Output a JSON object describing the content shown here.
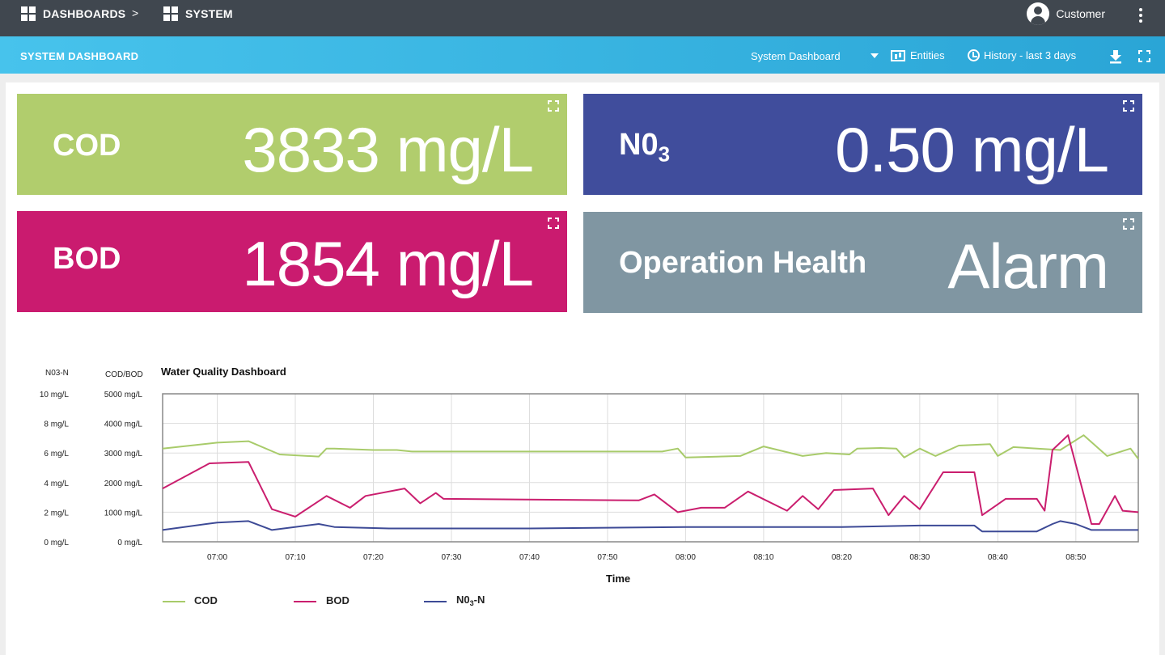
{
  "topbar": {
    "breadcrumb": [
      {
        "label": "DASHBOARDS",
        "icon": "dashboard-grid-icon"
      },
      {
        "label": "SYSTEM",
        "icon": "dashboard-grid-icon"
      }
    ],
    "separator": ">",
    "user_label": "Customer"
  },
  "subbar": {
    "title": "SYSTEM DASHBOARD",
    "dashboard_select": "System Dashboard",
    "entities_label": "Entities",
    "history_label": "History - last 3 days"
  },
  "cards": {
    "cod": {
      "label": "COD",
      "value": "3833 mg/L",
      "color": "#b1cd6d"
    },
    "no3": {
      "label_main": "N0",
      "label_sub": "3",
      "value": "0.50 mg/L",
      "color": "#404d9c"
    },
    "bod": {
      "label": "BOD",
      "value": "1854 mg/L",
      "color": "#ca1b6f"
    },
    "health": {
      "label": "Operation Health",
      "value": "Alarm",
      "color": "#8096a2"
    }
  },
  "chart_data": {
    "type": "line",
    "title": "Water Quality Dashboard",
    "xlabel": "Time",
    "left_axis_label": "N03-N",
    "right_axis_label": "COD/BOD",
    "left_ticks": [
      "10 mg/L",
      "8 mg/L",
      "6 mg/L",
      "4 mg/L",
      "2 mg/L",
      "0 mg/L"
    ],
    "right_ticks": [
      "5000 mg/L",
      "4000 mg/L",
      "3000 mg/L",
      "2000 mg/L",
      "1000 mg/L",
      "0 mg/L"
    ],
    "x_ticks": [
      "07:00",
      "07:10",
      "07:20",
      "07:30",
      "07:40",
      "07:50",
      "08:00",
      "08:10",
      "08:20",
      "08:30",
      "08:40",
      "08:50"
    ],
    "x_range": [
      "06:53",
      "08:58"
    ],
    "cod_bod_range": [
      0,
      5000
    ],
    "no3_range": [
      0,
      10
    ],
    "grid": true,
    "legend_position": "bottom-left",
    "series": [
      {
        "name": "COD",
        "legend_main": "COD",
        "color": "#a8cb6a",
        "axis": "cod_bod",
        "points": [
          [
            "06:53",
            3150
          ],
          [
            "07:00",
            3350
          ],
          [
            "07:04",
            3400
          ],
          [
            "07:08",
            2950
          ],
          [
            "07:13",
            2880
          ],
          [
            "07:14",
            3150
          ],
          [
            "07:15",
            3150
          ],
          [
            "07:20",
            3100
          ],
          [
            "07:23",
            3100
          ],
          [
            "07:25",
            3050
          ],
          [
            "07:50",
            3050
          ],
          [
            "07:57",
            3050
          ],
          [
            "07:59",
            3150
          ],
          [
            "08:00",
            2850
          ],
          [
            "08:07",
            2900
          ],
          [
            "08:10",
            3220
          ],
          [
            "08:15",
            2900
          ],
          [
            "08:18",
            3000
          ],
          [
            "08:21",
            2950
          ],
          [
            "08:22",
            3150
          ],
          [
            "08:25",
            3170
          ],
          [
            "08:27",
            3150
          ],
          [
            "08:28",
            2850
          ],
          [
            "08:30",
            3150
          ],
          [
            "08:32",
            2900
          ],
          [
            "08:35",
            3250
          ],
          [
            "08:39",
            3300
          ],
          [
            "08:40",
            2900
          ],
          [
            "08:42",
            3200
          ],
          [
            "08:48",
            3100
          ],
          [
            "08:51",
            3600
          ],
          [
            "08:54",
            2900
          ],
          [
            "08:57",
            3150
          ],
          [
            "08:58",
            2800
          ]
        ]
      },
      {
        "name": "BOD",
        "legend_main": "BOD",
        "color": "#ca1e6e",
        "axis": "cod_bod",
        "points": [
          [
            "06:53",
            1800
          ],
          [
            "06:59",
            2650
          ],
          [
            "07:04",
            2700
          ],
          [
            "07:07",
            1100
          ],
          [
            "07:10",
            850
          ],
          [
            "07:14",
            1550
          ],
          [
            "07:17",
            1150
          ],
          [
            "07:19",
            1550
          ],
          [
            "07:24",
            1800
          ],
          [
            "07:26",
            1300
          ],
          [
            "07:28",
            1650
          ],
          [
            "07:29",
            1450
          ],
          [
            "07:54",
            1400
          ],
          [
            "07:56",
            1600
          ],
          [
            "07:59",
            1000
          ],
          [
            "08:02",
            1150
          ],
          [
            "08:05",
            1150
          ],
          [
            "08:08",
            1700
          ],
          [
            "08:13",
            1050
          ],
          [
            "08:15",
            1550
          ],
          [
            "08:17",
            1100
          ],
          [
            "08:19",
            1750
          ],
          [
            "08:24",
            1800
          ],
          [
            "08:26",
            900
          ],
          [
            "08:28",
            1550
          ],
          [
            "08:30",
            1100
          ],
          [
            "08:33",
            2350
          ],
          [
            "08:37",
            2350
          ],
          [
            "08:38",
            900
          ],
          [
            "08:41",
            1450
          ],
          [
            "08:45",
            1450
          ],
          [
            "08:46",
            1050
          ],
          [
            "08:47",
            3100
          ],
          [
            "08:49",
            3600
          ],
          [
            "08:52",
            600
          ],
          [
            "08:53",
            600
          ],
          [
            "08:55",
            1550
          ],
          [
            "08:56",
            1050
          ],
          [
            "08:58",
            1000
          ]
        ]
      },
      {
        "name": "N03-N",
        "legend_main": "N0",
        "legend_sub": "3",
        "legend_suffix": "-N",
        "color": "#3d4a96",
        "axis": "no3",
        "points": [
          [
            "06:53",
            0.8
          ],
          [
            "07:00",
            1.3
          ],
          [
            "07:04",
            1.4
          ],
          [
            "07:07",
            0.8
          ],
          [
            "07:13",
            1.2
          ],
          [
            "07:15",
            1.0
          ],
          [
            "07:22",
            0.9
          ],
          [
            "07:40",
            0.9
          ],
          [
            "08:00",
            1.0
          ],
          [
            "08:20",
            1.0
          ],
          [
            "08:30",
            1.1
          ],
          [
            "08:37",
            1.1
          ],
          [
            "08:38",
            0.7
          ],
          [
            "08:45",
            0.7
          ],
          [
            "08:47",
            1.2
          ],
          [
            "08:48",
            1.4
          ],
          [
            "08:50",
            1.2
          ],
          [
            "08:52",
            0.8
          ],
          [
            "08:58",
            0.8
          ]
        ]
      }
    ]
  }
}
